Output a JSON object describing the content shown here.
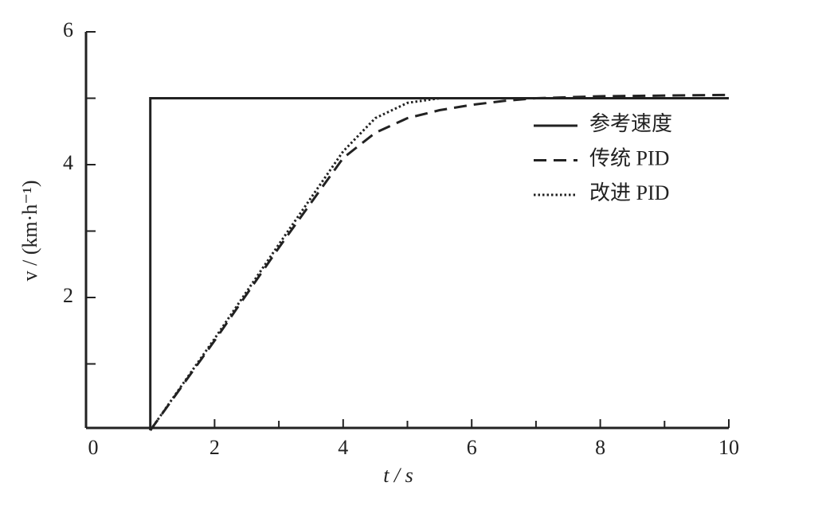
{
  "chart_data": {
    "type": "line",
    "xlabel": "t / s",
    "ylabel": "v / (km·h⁻¹)",
    "xlim": [
      0,
      10
    ],
    "xticks": [
      0,
      2,
      4,
      6,
      8,
      10
    ],
    "xminor": [
      1,
      3,
      5,
      7,
      9
    ],
    "ylim": [
      0,
      6
    ],
    "yticks": [
      2,
      4,
      6
    ],
    "yminor": [
      1,
      3,
      5
    ],
    "legend": "upper right",
    "series": [
      {
        "name": "参考速度",
        "color": "#222222",
        "style": "solid",
        "x": [
          1,
          1,
          10
        ],
        "values": [
          0,
          5,
          5
        ]
      },
      {
        "name": "传统 PID",
        "color": "#222222",
        "style": "dashed",
        "x": [
          1,
          2,
          3,
          4,
          4.5,
          5,
          5.5,
          6,
          6.5,
          7,
          8,
          10
        ],
        "values": [
          0,
          1.35,
          2.75,
          4.1,
          4.48,
          4.7,
          4.82,
          4.9,
          4.96,
          5,
          5.03,
          5.05
        ]
      },
      {
        "name": "改进 PID",
        "color": "#222222",
        "style": "dotted",
        "x": [
          1,
          2,
          3,
          4,
          4.5,
          5,
          5.5,
          6,
          8,
          10
        ],
        "values": [
          0,
          1.38,
          2.8,
          4.2,
          4.7,
          4.93,
          5,
          5,
          5,
          5
        ]
      }
    ]
  }
}
